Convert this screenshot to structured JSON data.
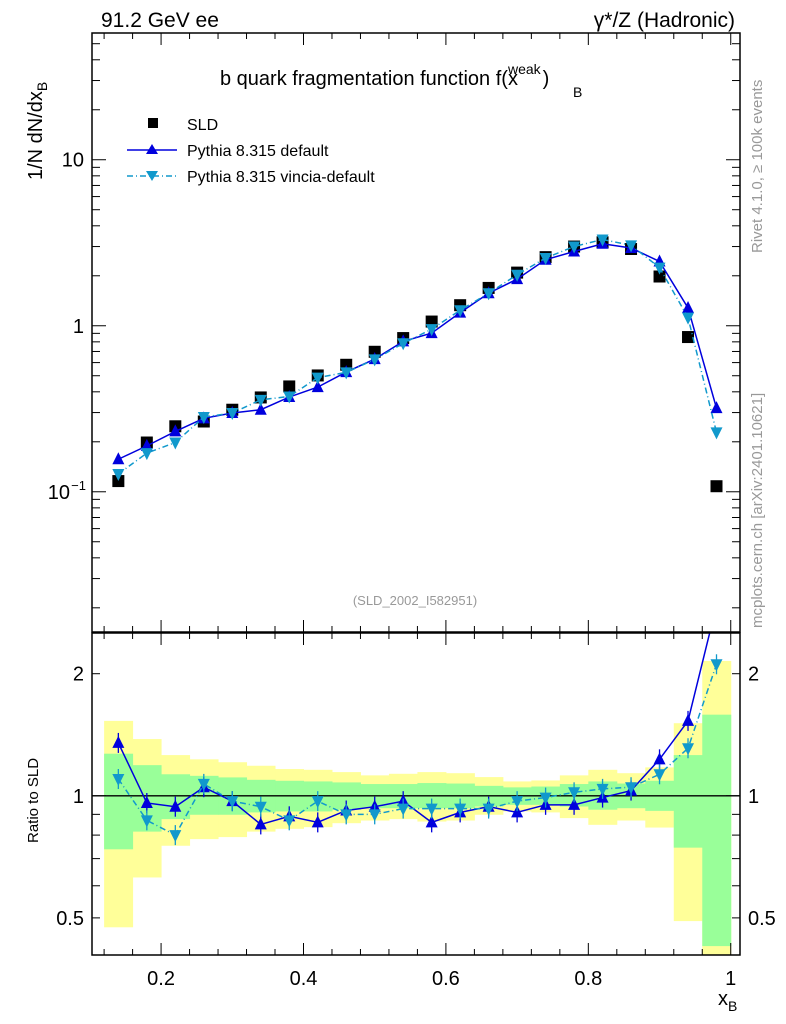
{
  "header": {
    "left": "91.2 GeV ee",
    "right": "γ*/Z (Hadronic)"
  },
  "side_labels": {
    "rivet": "Rivet 4.1.0, ≥ 100k events",
    "mcplots": "mcplots.cern.ch [arXiv:2401.10621]"
  },
  "colors": {
    "data": "#000000",
    "default": "#0000dd",
    "vincia": "#1199cc",
    "band_outer": "#ffff99",
    "band_inner": "#99ff99"
  },
  "chart_data": [
    {
      "type": "line",
      "title": "b quark fragmentation function f(x_B^weak)",
      "title_main": "b quark fragmentation function f(",
      "title_x": "x",
      "title_sup": "weak",
      "title_sub": "B",
      "title_close": ")",
      "ylabel": "1/N  dN/dx_B",
      "ylabel_main": "1/N  dN/dx",
      "ylabel_sub": "B",
      "analysis_tag": "(SLD_2002_I582951)",
      "yscale": "log",
      "xlim": [
        0.103,
        1.013
      ],
      "ylim": [
        0.0143,
        58
      ],
      "yticks": [
        {
          "v": 10,
          "label": "10"
        },
        {
          "v": 1,
          "label": "1"
        },
        {
          "v": 0.1,
          "label": "10",
          "sup": "−1"
        }
      ],
      "legend_position": "top-left",
      "x": [
        0.14,
        0.18,
        0.22,
        0.26,
        0.3,
        0.34,
        0.38,
        0.42,
        0.46,
        0.5,
        0.54,
        0.58,
        0.62,
        0.66,
        0.7,
        0.74,
        0.78,
        0.82,
        0.86,
        0.9,
        0.94,
        0.98
      ],
      "series": [
        {
          "name": "SLD",
          "key": "data",
          "marker": "square",
          "values": [
            0.116,
            0.198,
            0.248,
            0.265,
            0.312,
            0.37,
            0.431,
            0.502,
            0.582,
            0.697,
            0.843,
            1.06,
            1.33,
            1.69,
            2.09,
            2.59,
            3.0,
            3.18,
            2.9,
            1.98,
            0.855,
            0.108
          ]
        },
        {
          "name": "Pythia 8.315 default",
          "key": "default",
          "marker": "triangle-up",
          "values": [
            0.157,
            0.189,
            0.231,
            0.277,
            0.298,
            0.312,
            0.372,
            0.427,
            0.526,
            0.63,
            0.805,
            0.903,
            1.2,
            1.57,
            1.91,
            2.5,
            2.8,
            3.12,
            2.94,
            2.44,
            1.28,
            0.319
          ]
        },
        {
          "name": "Pythia 8.315 vincia-default",
          "key": "vincia",
          "marker": "triangle-down",
          "values": [
            0.128,
            0.171,
            0.198,
            0.282,
            0.298,
            0.358,
            0.375,
            0.487,
            0.524,
            0.627,
            0.784,
            0.954,
            1.24,
            1.57,
            2.03,
            2.56,
            3.0,
            3.31,
            3.05,
            2.24,
            1.12,
            0.228
          ]
        }
      ]
    },
    {
      "type": "line",
      "ylabel": "Ratio to SLD",
      "xlabel": "x_B",
      "xlabel_main": "x",
      "xlabel_sub": "B",
      "yscale": "log",
      "xlim": [
        0.103,
        1.013
      ],
      "ylim": [
        0.405,
        2.52
      ],
      "xticks": [
        {
          "v": 0.2,
          "label": "0.2"
        },
        {
          "v": 0.4,
          "label": "0.4"
        },
        {
          "v": 0.6,
          "label": "0.6"
        },
        {
          "v": 0.8,
          "label": "0.8"
        },
        {
          "v": 1.0,
          "label": "1"
        }
      ],
      "yticks": [
        {
          "v": 2,
          "label": "2"
        },
        {
          "v": 1,
          "label": "1"
        },
        {
          "v": 0.5,
          "label": "0.5"
        }
      ],
      "bin_edges": [
        0.12,
        0.16,
        0.2,
        0.24,
        0.28,
        0.32,
        0.36,
        0.4,
        0.44,
        0.48,
        0.52,
        0.56,
        0.6,
        0.64,
        0.68,
        0.72,
        0.76,
        0.8,
        0.84,
        0.88,
        0.92,
        0.96,
        1.0
      ],
      "band_outer": {
        "hi": [
          1.53,
          1.38,
          1.26,
          1.23,
          1.21,
          1.186,
          1.164,
          1.159,
          1.144,
          1.123,
          1.133,
          1.144,
          1.137,
          1.112,
          1.085,
          1.091,
          1.123,
          1.159,
          1.137,
          1.175,
          1.51,
          2.15
        ],
        "lo": [
          0.474,
          0.629,
          0.753,
          0.782,
          0.791,
          0.816,
          0.829,
          0.837,
          0.856,
          0.869,
          0.876,
          0.864,
          0.869,
          0.898,
          0.915,
          0.91,
          0.881,
          0.848,
          0.869,
          0.835,
          0.491,
          0.38
        ]
      },
      "band_inner": {
        "hi": [
          1.27,
          1.19,
          1.13,
          1.12,
          1.11,
          1.095,
          1.089,
          1.085,
          1.079,
          1.069,
          1.069,
          1.075,
          1.072,
          1.058,
          1.049,
          1.054,
          1.069,
          1.085,
          1.072,
          1.089,
          1.26,
          1.585
        ],
        "lo": [
          0.738,
          0.816,
          0.876,
          0.898,
          0.898,
          0.91,
          0.915,
          0.915,
          0.924,
          0.932,
          0.932,
          0.932,
          0.932,
          0.941,
          0.95,
          0.95,
          0.941,
          0.924,
          0.932,
          0.918,
          0.745,
          0.426
        ]
      },
      "x": [
        0.14,
        0.18,
        0.22,
        0.26,
        0.3,
        0.34,
        0.38,
        0.42,
        0.46,
        0.5,
        0.54,
        0.58,
        0.62,
        0.66,
        0.7,
        0.74,
        0.78,
        0.82,
        0.86,
        0.9,
        0.94,
        0.98
      ],
      "series": [
        {
          "name": "Pythia 8.315 default",
          "key": "default",
          "marker": "triangle-up",
          "values": [
            1.35,
            0.96,
            0.94,
            1.05,
            0.97,
            0.85,
            0.89,
            0.86,
            0.92,
            0.94,
            0.97,
            0.86,
            0.91,
            0.94,
            0.91,
            0.95,
            0.95,
            0.99,
            1.03,
            1.23,
            1.53,
            2.95
          ]
        },
        {
          "name": "Pythia 8.315 vincia-default",
          "key": "vincia",
          "marker": "triangle-down",
          "values": [
            1.1,
            0.87,
            0.8,
            1.07,
            0.97,
            0.94,
            0.87,
            0.97,
            0.9,
            0.9,
            0.93,
            0.93,
            0.93,
            0.93,
            0.97,
            0.99,
            1.02,
            1.04,
            1.05,
            1.13,
            1.31,
            2.11
          ]
        }
      ]
    }
  ]
}
